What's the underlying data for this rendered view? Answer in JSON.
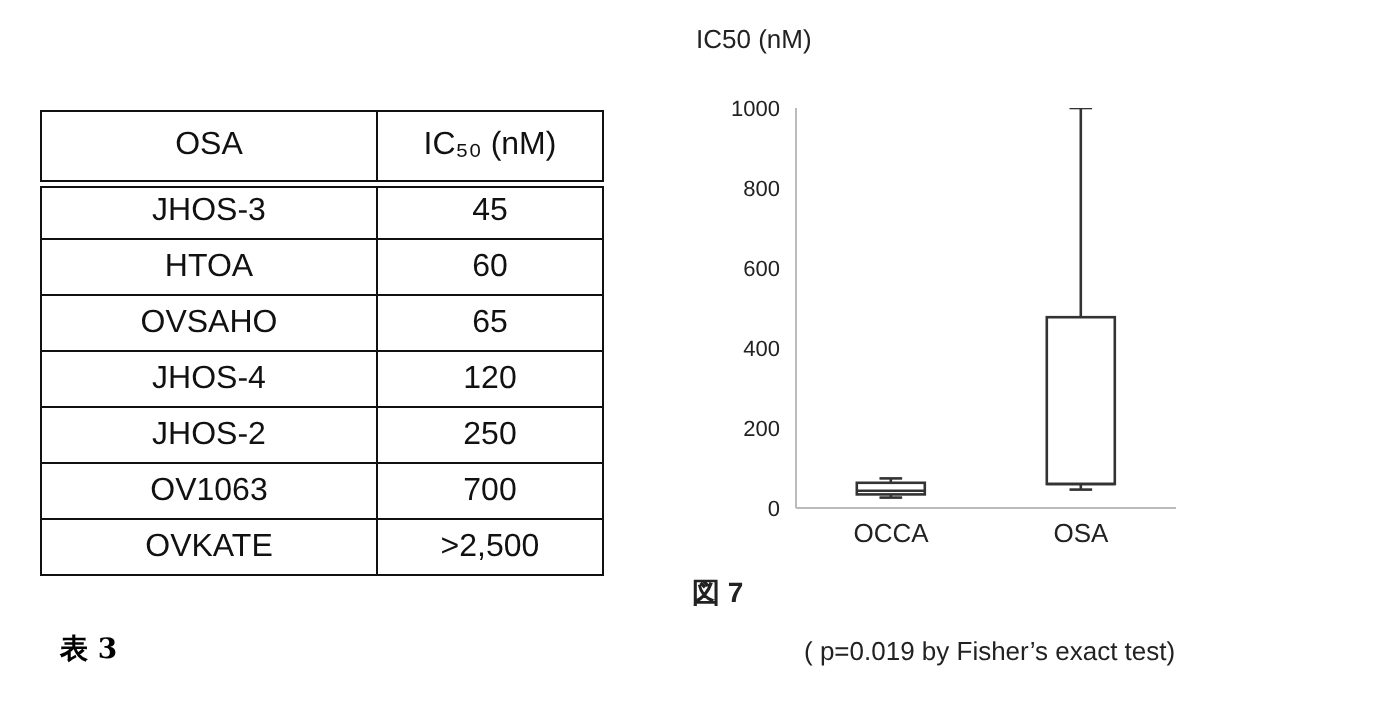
{
  "chart_data": [
    {
      "type": "other",
      "title": "表 3",
      "annotations": [
        "OSA",
        "IC₅₀ (nM)",
        "JHOS-3",
        "45",
        "HTOA",
        "60",
        "OVSAHO",
        "65",
        "JHOS-4",
        "120",
        "JHOS-2",
        "250",
        "OV1063",
        "700",
        "OVKATE",
        ">2,500"
      ]
    },
    {
      "type": "box",
      "ylabel": "IC50 (nM)",
      "categories": [
        "OCCA",
        "OSA"
      ],
      "boxes": [
        {
          "low": 26,
          "q1": 34,
          "median": 43,
          "q3": 63,
          "high": 74
        },
        {
          "low": 46,
          "q1": 60,
          "median": 60,
          "q3": 477,
          "high": 1000
        }
      ],
      "ylim": [
        0,
        1000
      ],
      "yticks": [
        0,
        200,
        400,
        600,
        800,
        1000
      ],
      "annotations": [
        "図 7",
        "( p=0.019 by Fisher’s exact test)"
      ]
    }
  ]
}
